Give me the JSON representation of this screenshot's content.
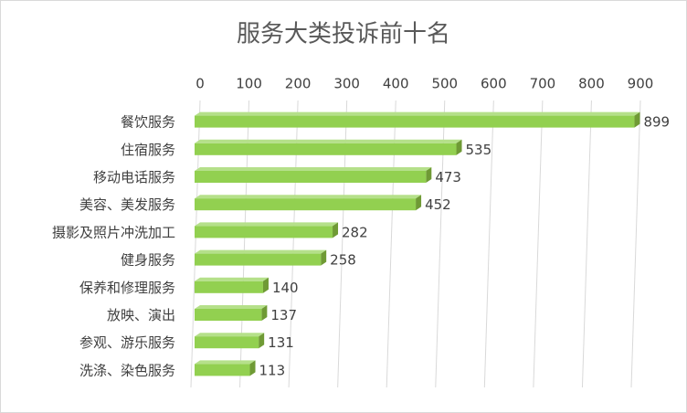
{
  "chart_data": {
    "type": "bar3d_horizontal",
    "title": "服务大类投诉前十名",
    "categories": [
      "餐饮服务",
      "住宿服务",
      "移动电话服务",
      "美容、美发服务",
      "摄影及照片冲洗加工",
      "健身服务",
      "保养和修理服务",
      "放映、演出",
      "参观、游乐服务",
      "洗涤、染色服务"
    ],
    "values": [
      899,
      535,
      473,
      452,
      282,
      258,
      140,
      137,
      131,
      113
    ],
    "color": "#92d050",
    "xlim": [
      0,
      900
    ],
    "xticks": [
      0,
      100,
      200,
      300,
      400,
      500,
      600,
      700,
      800,
      900
    ],
    "grid": true
  }
}
